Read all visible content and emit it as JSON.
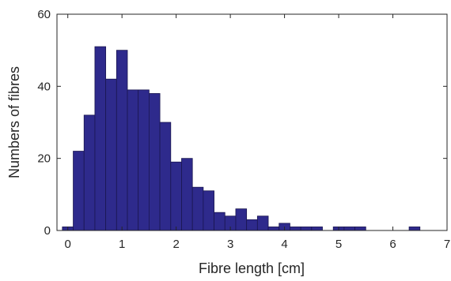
{
  "chart_data": {
    "type": "bar",
    "xlabel": "Fibre length [cm]",
    "ylabel": "Numbers of fibres",
    "xlim": [
      -0.2,
      7
    ],
    "ylim": [
      0,
      60
    ],
    "xticks": [
      "0",
      "1",
      "2",
      "3",
      "4",
      "5",
      "6",
      "7"
    ],
    "yticks": [
      "0",
      "20",
      "40",
      "60"
    ],
    "bin_width": 0.2,
    "bin_starts": [
      -0.1,
      0.1,
      0.3,
      0.5,
      0.7,
      0.9,
      1.1,
      1.3,
      1.5,
      1.7,
      1.9,
      2.1,
      2.3,
      2.5,
      2.7,
      2.9,
      3.1,
      3.3,
      3.5,
      3.7,
      3.9,
      4.1,
      4.3,
      4.5,
      4.7,
      4.9,
      5.1,
      5.3,
      5.5,
      5.7,
      5.9,
      6.1,
      6.3
    ],
    "values": [
      1,
      22,
      32,
      51,
      42,
      50,
      39,
      39,
      38,
      30,
      19,
      20,
      12,
      11,
      5,
      4,
      6,
      3,
      4,
      1,
      2,
      1,
      1,
      1,
      0,
      1,
      1,
      1,
      0,
      0,
      0,
      0,
      1
    ],
    "bar_color": "#2e2a8c",
    "bar_edge_color": "#1a1650",
    "grid": false,
    "legend": "none"
  }
}
